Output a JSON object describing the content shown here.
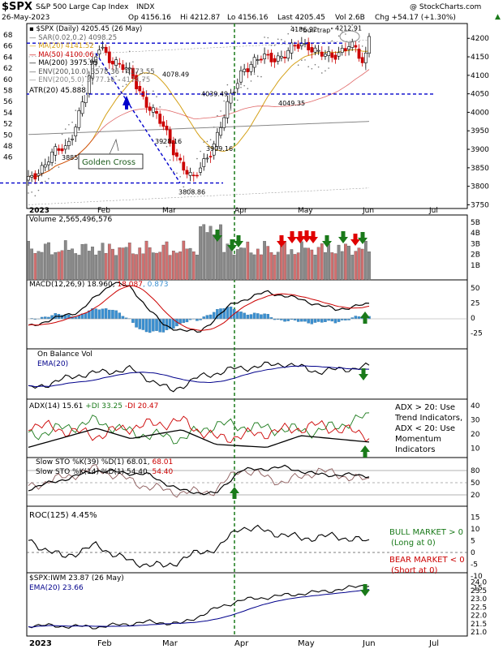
{
  "header": {
    "symbol": "$SPX",
    "name": "S&P 500 Large Cap Index",
    "exchange": "INDX",
    "watermark": "@ StockCharts.com",
    "date": "26-May-2023",
    "open": "Op 4156.16",
    "high": "Hi 4212.87",
    "low": "Lo 4156.16",
    "last": "Last 4205.45",
    "volume": "Vol 2.6B",
    "change": "Chg +54.17 (+1.30%)",
    "change_arrow": "▲"
  },
  "colors": {
    "up_candle": "#ffffff",
    "down_candle": "#cc0000",
    "ma20": "#d4a017",
    "ma50": "#cc0000",
    "ma200": "#000000",
    "trendline": "#0000cc",
    "green_arrow": "#1a7a1a",
    "red_arrow": "#e00000",
    "macd_hist": "#3a8fd0",
    "vol_up": "#8a8a8a",
    "vol_down": "#d07070"
  },
  "price_panel": {
    "legend": [
      {
        "text": "$SPX (Daily) 4205.45 (26 May)",
        "color": "#000000"
      },
      {
        "text": "SAR(0.02,0.2) 4098.25",
        "color": "#666666"
      },
      {
        "text": "MA(20) 4141.52",
        "color": "#d4a017"
      },
      {
        "text": "MA(50) 4100.06",
        "color": "#cc0000"
      },
      {
        "text": "MA(200) 3975.95",
        "color": "#000000"
      },
      {
        "text": "ENV(200,10.0) 3578.36 - 4373.55",
        "color": "#555555"
      },
      {
        "text": "ENV(200,5.0) 3777.16 - 4174.75",
        "color": "#888888"
      }
    ],
    "atr_label": "ATR(20) 45.888",
    "atr_value_label": "4",
    "left_axis": [
      "68",
      "66",
      "64",
      "62",
      "60",
      "58",
      "56",
      "54",
      "52",
      "50",
      "48",
      "46"
    ],
    "right_axis": [
      "4200",
      "4150",
      "4100",
      "4050",
      "4000",
      "3950",
      "3900",
      "3850",
      "3800",
      "3750"
    ],
    "annotations": {
      "bull_trap": "\"bull trap\"",
      "golden_cross": "Golden Cross",
      "p4186": "4186.92",
      "p4212": "4212.91",
      "p4078": "4078.49",
      "p4039": "4039.49",
      "p4049": "4049.35",
      "p3928": "3928.16",
      "p3909": "3909.16",
      "p3885": "3885",
      "p3808": "3808.86"
    },
    "month_labels": [
      "2023",
      "Feb",
      "Mar",
      "Apr",
      "May",
      "Jun",
      "Jul"
    ]
  },
  "volume_panel": {
    "label": "Volume 2,565,496,576",
    "axis": [
      "5B",
      "4B",
      "3B",
      "2B",
      "1B"
    ]
  },
  "macd_panel": {
    "label_base": "MACD(12,26,9) 18.960, ",
    "signal": "18.087",
    "hist": ", 0.873",
    "axis": [
      "50",
      "25",
      "0",
      "-25"
    ]
  },
  "obv_panel": {
    "label": "On Balance Vol",
    "ema_label": "EMA(20)"
  },
  "adx_panel": {
    "label_adx": "ADX(14) 15.61",
    "label_pdi": "+DI 33.25",
    "label_mdi": "-DI 20.47",
    "note_lines": [
      "ADX > 20: Use",
      "Trend Indicators,",
      "ADX < 20: Use",
      "Momentum",
      "Indicators"
    ],
    "axis": [
      "40",
      "30",
      "20",
      "10"
    ]
  },
  "sto_panel": {
    "label1": "Slow STO %K(39) %D(1) 68.01, ",
    "label1_val": "68.01",
    "label2": "Slow STO %K(14) %D(1) 54.40, ",
    "label2_val": "54.40",
    "axis": [
      "80",
      "50",
      "20"
    ]
  },
  "roc_panel": {
    "label": "ROC(125) 4.45%",
    "bull_lines": [
      "BULL MARKET > 0",
      "(Long at 0)"
    ],
    "bear_lines": [
      "BEAR MARKET < 0",
      "(Short at 0)"
    ],
    "axis": [
      "15",
      "10",
      "5",
      "0",
      "-5",
      "-10",
      "-15"
    ]
  },
  "ratio_panel": {
    "label": "$SPX:IWM 23.87 (26 May)",
    "ema_label": "EMA(20) 23.66",
    "axis": [
      "24.0",
      "23.5",
      "23.0",
      "22.5",
      "22.0",
      "21.5",
      "21.0"
    ]
  },
  "bottom_axis": [
    "2023",
    "Feb",
    "Mar",
    "Apr",
    "May",
    "Jun",
    "Jul"
  ],
  "chart_data": {
    "type": "line",
    "title": "$SPX S&P 500 Large Cap Index INDX",
    "xlabel": "",
    "ylabel": "",
    "x": [
      "2023-01-03",
      "2023-01-12",
      "2023-01-19",
      "2023-02-02",
      "2023-02-16",
      "2023-03-01",
      "2023-03-13",
      "2023-03-24",
      "2023-04-03",
      "2023-04-18",
      "2023-05-01",
      "2023-05-10",
      "2023-05-18",
      "2023-05-24",
      "2023-05-26"
    ],
    "series": [
      {
        "name": "$SPX (Daily)",
        "values": [
          3808,
          3885,
          3898,
          4179,
          4090,
          3950,
          3808,
          3948,
          4125,
          4154,
          4186,
          4137,
          4198,
          4115,
          4205
        ]
      }
    ],
    "ylim": [
      3740,
      4240
    ],
    "annotated_levels": [
      4212.91,
      4186.92,
      4078.49,
      4049.35,
      4039.49,
      3928.16,
      3909.16,
      3885,
      3808.86
    ],
    "grid": false
  }
}
